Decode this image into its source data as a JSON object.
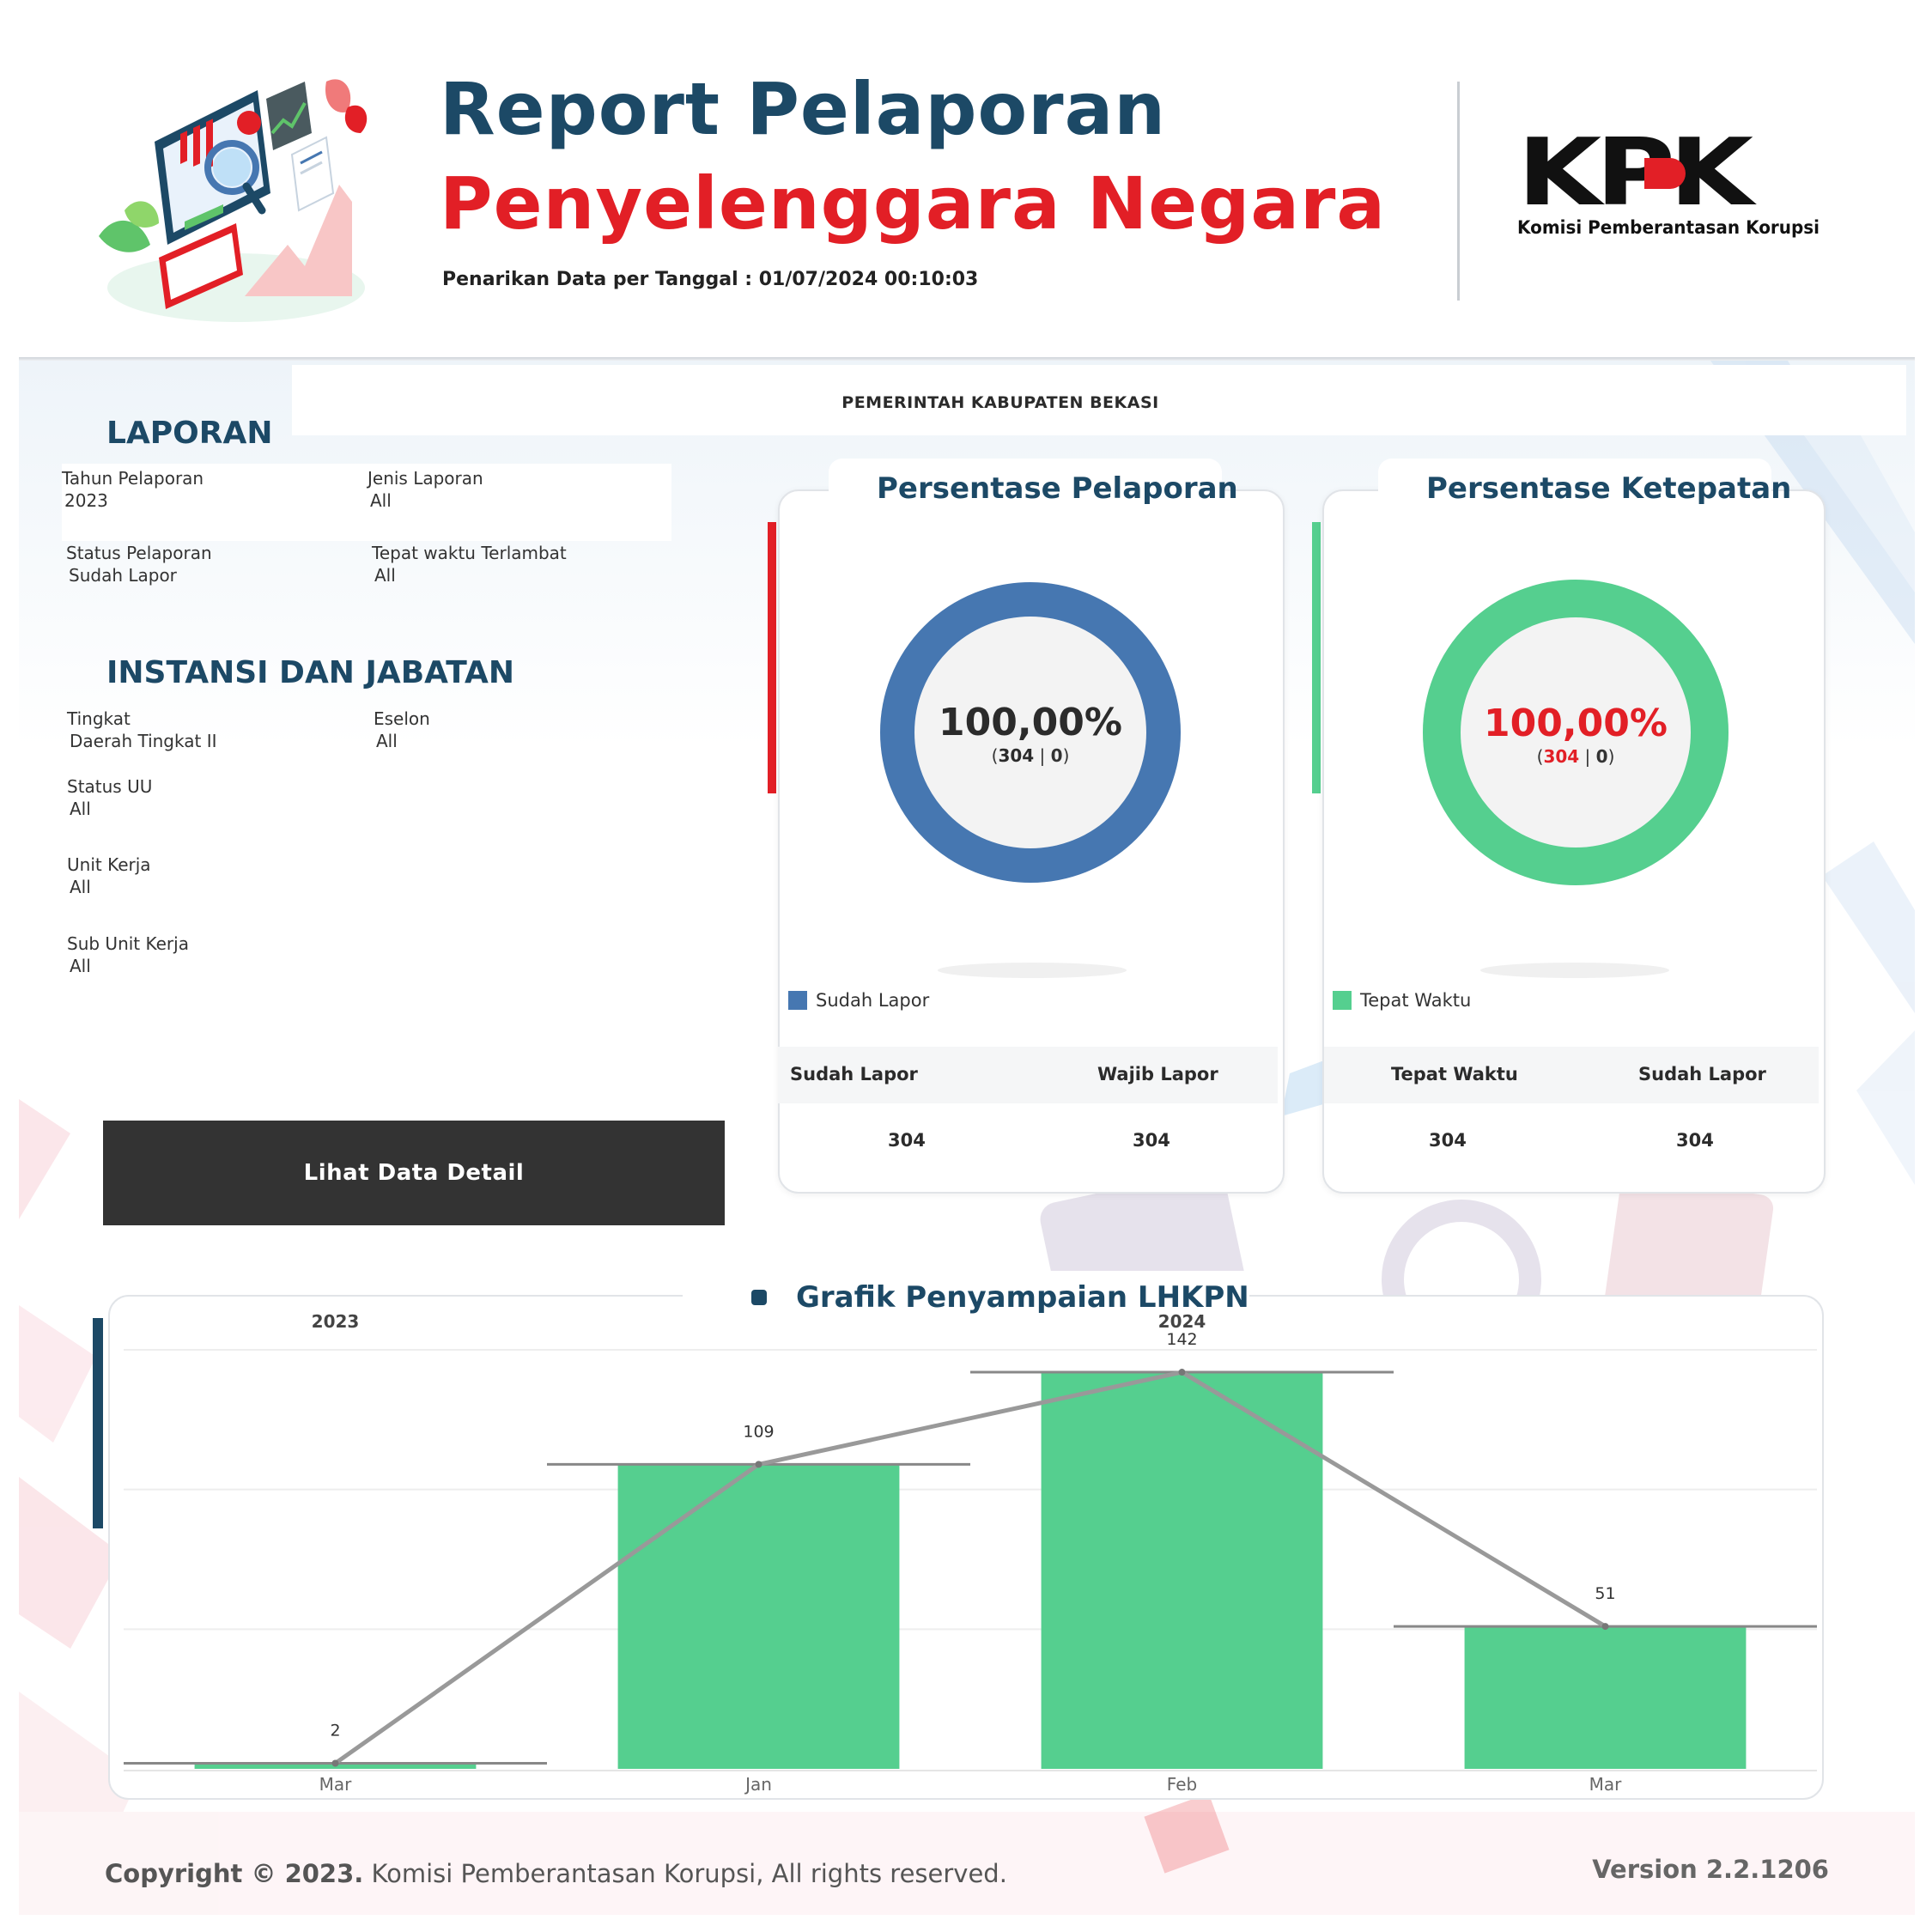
{
  "header": {
    "title_line1": "Report Pelaporan",
    "title_line2": "Penyelenggara Negara",
    "data_pull_label": "Penarikan Data per Tanggal : 01/07/2024 00:10:03",
    "logo_text": "KPK",
    "logo_subtitle": "Komisi Pemberantasan Korupsi",
    "colors": {
      "navy": "#1c4966",
      "red": "#e21f26"
    }
  },
  "organization": "PEMERINTAH KABUPATEN BEKASI",
  "laporan": {
    "title": "LAPORAN",
    "filters": [
      {
        "label": "Tahun Pelaporan",
        "value": "2023"
      },
      {
        "label": "Jenis Laporan",
        "value": "All"
      },
      {
        "label": "Status Pelaporan",
        "value": "Sudah Lapor"
      },
      {
        "label": "Tepat waktu Terlambat",
        "value": "All"
      }
    ]
  },
  "instansi": {
    "title": "INSTANSI DAN JABATAN",
    "filters": [
      {
        "label": "Tingkat",
        "value": "Daerah Tingkat II"
      },
      {
        "label": "Eselon",
        "value": "All"
      },
      {
        "label": "Status UU",
        "value": "All"
      },
      {
        "label": "Unit Kerja",
        "value": "All"
      },
      {
        "label": "Sub Unit Kerja",
        "value": "All"
      }
    ]
  },
  "detail_button": "Lihat Data Detail",
  "cards": [
    {
      "title": "Persentase Pelaporan",
      "dot_color": "#e21f26",
      "ring_color": "#4677b1",
      "percent_text": "100,00%",
      "percent_color": "#2b2b2b",
      "sub_open": "(",
      "sub_a": "304",
      "sub_sep": " | ",
      "sub_b": "0",
      "sub_close": ")",
      "sub_a_color": "#2b2b2b",
      "fill_fraction": 1.0,
      "legend": "Sudah Lapor",
      "col1_header": "Sudah Lapor",
      "col2_header": "Wajib Lapor",
      "col1_value": "304",
      "col2_value": "304"
    },
    {
      "title": "Persentase Ketepatan",
      "dot_color": "#55cf8f",
      "ring_color": "#55cf8f",
      "percent_text": "100,00%",
      "percent_color": "#e21f26",
      "sub_open": "(",
      "sub_a": "304",
      "sub_sep": " | ",
      "sub_b": "0",
      "sub_close": ")",
      "sub_a_color": "#e21f26",
      "fill_fraction": 1.0,
      "legend": "Tepat Waktu",
      "col1_header": "Tepat Waktu",
      "col2_header": "Sudah Lapor",
      "col1_value": "304",
      "col2_value": "304"
    }
  ],
  "chart_data": {
    "type": "bar",
    "title": "Grafik Penyampaian LHKPN",
    "year_groups": [
      {
        "label": "2023",
        "categories": [
          "Mar"
        ]
      },
      {
        "label": "2024",
        "categories": [
          "Jan",
          "Feb",
          "Mar"
        ]
      }
    ],
    "categories": [
      "Mar",
      "Jan",
      "Feb",
      "Mar"
    ],
    "values": [
      2,
      109,
      142,
      51
    ],
    "ylim": [
      0,
      150
    ],
    "bar_color": "#55cf8f",
    "line_color": "#999999",
    "grid": true,
    "legend": "none"
  },
  "footer": {
    "copyright_bold": "Copyright © 2023.",
    "copyright_rest": " Komisi Pemberantasan Korupsi, All rights reserved.",
    "version_label": "Version  2.2.1206"
  }
}
